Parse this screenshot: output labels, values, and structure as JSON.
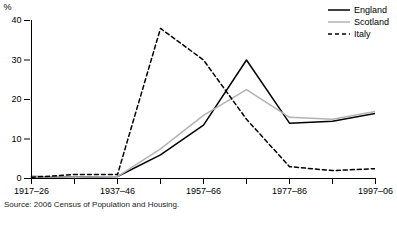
{
  "chart_data": {
    "type": "line",
    "y_label": "%",
    "caption": "Source: 2006 Census of Population and Housing.",
    "categories": [
      "1917–26",
      null,
      "1937–46",
      null,
      "1957–66",
      null,
      "1977–86",
      null,
      "1997–06"
    ],
    "series": [
      {
        "name": "England",
        "color": "#000000",
        "line_style": "solid",
        "values": [
          0.5,
          0.3,
          0.5,
          6,
          13.5,
          30,
          14,
          14.5,
          16.5
        ]
      },
      {
        "name": "Scotland",
        "color": "#b3b3b3",
        "line_style": "solid",
        "values": [
          0.5,
          0.3,
          0.5,
          7.5,
          16,
          22.5,
          15.5,
          15,
          17
        ]
      },
      {
        "name": "Italy",
        "color": "#000000",
        "line_style": "dashed",
        "values": [
          0.3,
          1,
          1,
          38,
          30,
          15,
          3,
          2,
          2.5
        ]
      }
    ],
    "ylim": [
      0,
      40
    ],
    "yticks": [
      0,
      10,
      20,
      30,
      40
    ],
    "grid": false,
    "legend": "top-right"
  }
}
